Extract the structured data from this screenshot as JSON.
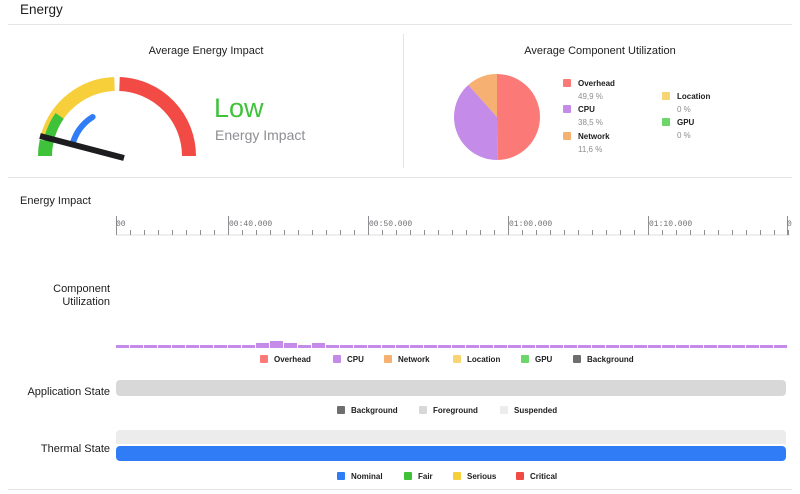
{
  "header": {
    "title": "Energy"
  },
  "energy_panel": {
    "title": "Average Energy Impact",
    "rating": "Low",
    "rating_sub": "Energy Impact",
    "colors": {
      "low": "#3ec23a",
      "blue": "#2f7cf6",
      "yellow": "#f7cf3a",
      "red": "#f24a45",
      "needle": "#1d1d1f"
    }
  },
  "component_panel": {
    "title": "Average Component Utilization",
    "items": [
      {
        "name": "Overhead",
        "percent": "49,9 %",
        "color": "#fb7a78"
      },
      {
        "name": "CPU",
        "percent": "38,5 %",
        "color": "#c58be8"
      },
      {
        "name": "Network",
        "percent": "11,6 %",
        "color": "#f6b071"
      },
      {
        "name": "Location",
        "percent": "0 %",
        "color": "#f7d575"
      },
      {
        "name": "GPU",
        "percent": "0 %",
        "color": "#6cd66a"
      }
    ]
  },
  "timeline": {
    "title": "Energy Impact",
    "tick_labels": [
      "00",
      "00:40.000",
      "00:50.000",
      "01:00.000",
      "01:10.000",
      "0"
    ],
    "rows": {
      "component": "Component\nUtilization",
      "application": "Application State",
      "thermal": "Thermal State"
    },
    "component_legend": [
      {
        "label": "Overhead",
        "color": "#fb7a78"
      },
      {
        "label": "CPU",
        "color": "#c58be8"
      },
      {
        "label": "Network",
        "color": "#f6b071"
      },
      {
        "label": "Location",
        "color": "#f7d575"
      },
      {
        "label": "GPU",
        "color": "#6cd66a"
      },
      {
        "label": "Background",
        "color": "#6e6e6e"
      }
    ],
    "app_state_legend": [
      {
        "label": "Background",
        "color": "#6e6e6e"
      },
      {
        "label": "Foreground",
        "color": "#d8d8d8"
      },
      {
        "label": "Suspended",
        "color": "#ececec"
      }
    ],
    "thermal_legend": [
      {
        "label": "Nominal",
        "color": "#2f7cf6"
      },
      {
        "label": "Fair",
        "color": "#3ec23a"
      },
      {
        "label": "Serious",
        "color": "#f7cf3a"
      },
      {
        "label": "Critical",
        "color": "#f24a45"
      }
    ],
    "colors": {
      "cpu": "#c58be8",
      "app_track": "#d8d8d8",
      "thermal_bg": "#ececec",
      "thermal_nominal": "#2f7cf6"
    }
  }
}
